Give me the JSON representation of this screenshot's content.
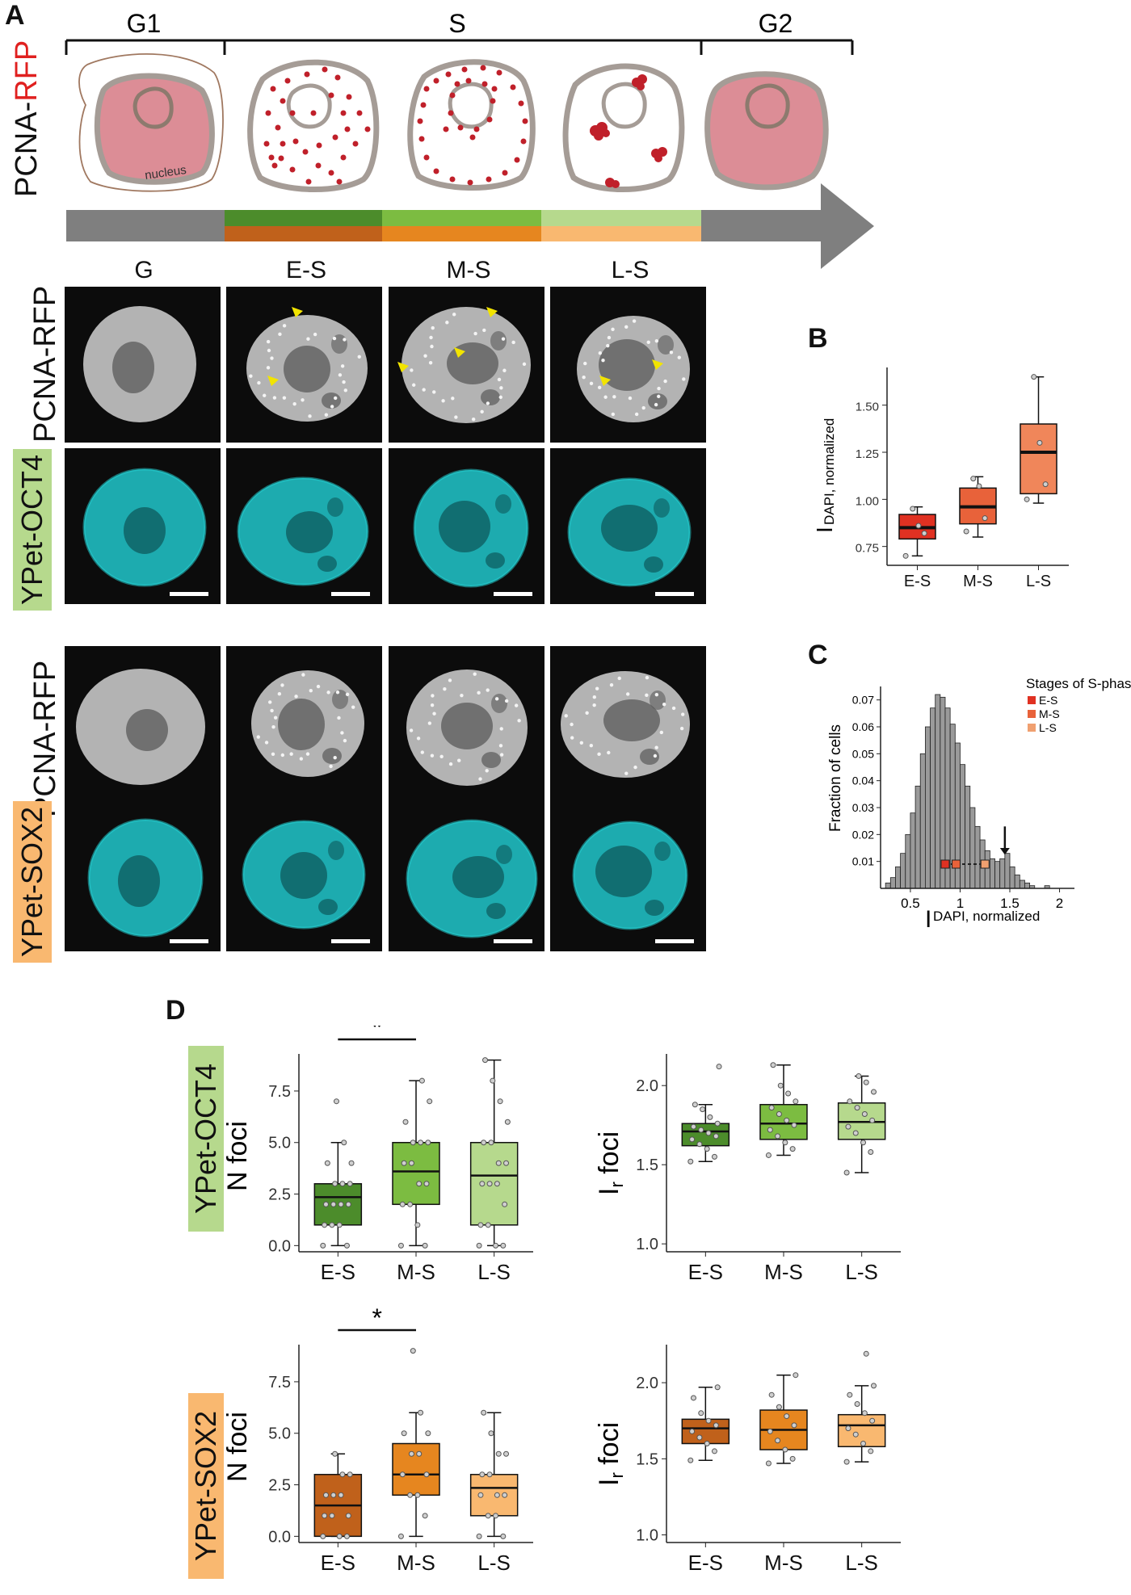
{
  "panelA": {
    "letter": "A",
    "phases": [
      "G1",
      "S",
      "G2"
    ],
    "row_label_reporter": "PCNA-",
    "row_label_color": "RFP",
    "nucleus_label": "nucleus",
    "column_headers": [
      "G",
      "E-S",
      "M-S",
      "L-S"
    ],
    "row1_label": "PCNA-RFP",
    "row2_label": "YPet-OCT4",
    "row3_label": "PCNA-RFP",
    "row4_label": "YPet-SOX2"
  },
  "colors": {
    "green_dark": "#4c8c2b",
    "green_mid": "#7cbc41",
    "green_light": "#b6d98d",
    "orange_dark": "#c0611b",
    "orange_mid": "#e6861f",
    "orange_light": "#f9b870",
    "red": "#e03122",
    "cyan": "#19c4c8",
    "pcna_red": "#c0202a",
    "nucleus_pink": "#dc8d96"
  },
  "panelB": {
    "letter": "B",
    "ylabel_main": "I",
    "ylabel_sub": "DAPI, normalized",
    "chart_data": {
      "type": "box",
      "categories": [
        "E-S",
        "M-S",
        "L-S"
      ],
      "ylim": [
        0.65,
        1.7
      ],
      "yticks": [
        "0.75",
        "1.00",
        "1.25",
        "1.50"
      ],
      "boxes": [
        {
          "name": "E-S",
          "min": 0.7,
          "q1": 0.79,
          "median": 0.85,
          "q3": 0.92,
          "max": 0.96,
          "points": [
            0.7,
            0.82,
            0.86,
            0.95
          ]
        },
        {
          "name": "M-S",
          "min": 0.8,
          "q1": 0.87,
          "median": 0.96,
          "q3": 1.06,
          "max": 1.12,
          "points": [
            0.83,
            0.9,
            1.07,
            1.11
          ]
        },
        {
          "name": "L-S",
          "min": 0.98,
          "q1": 1.03,
          "median": 1.25,
          "q3": 1.4,
          "max": 1.65,
          "points": [
            1.0,
            1.08,
            1.3,
            1.65
          ]
        }
      ]
    }
  },
  "panelC": {
    "letter": "C",
    "ylabel": "Fraction of cells",
    "xlabel_main": "I",
    "xlabel_sub": "DAPI, normalized",
    "legend_title": "Stages of S-phase",
    "legend": [
      "E-S",
      "M-S",
      "L-S"
    ],
    "chart_data": {
      "type": "bar",
      "xlim": [
        0.2,
        2.15
      ],
      "ylim": [
        0,
        0.075
      ],
      "xticks": [
        "0.5",
        "1",
        "1.5",
        "2"
      ],
      "yticks": [
        "0.01",
        "0.02",
        "0.03",
        "0.04",
        "0.05",
        "0.06",
        "0.07"
      ],
      "bin_width": 0.05,
      "bin_starts": [
        0.25,
        0.3,
        0.35,
        0.4,
        0.45,
        0.5,
        0.55,
        0.6,
        0.65,
        0.7,
        0.75,
        0.8,
        0.85,
        0.9,
        0.95,
        1.0,
        1.05,
        1.1,
        1.15,
        1.2,
        1.25,
        1.3,
        1.35,
        1.4,
        1.45,
        1.5,
        1.55,
        1.6,
        1.65,
        1.7,
        1.75,
        1.8,
        1.85,
        1.9,
        1.95
      ],
      "values": [
        0.002,
        0.004,
        0.008,
        0.013,
        0.02,
        0.028,
        0.038,
        0.05,
        0.06,
        0.067,
        0.072,
        0.071,
        0.067,
        0.061,
        0.054,
        0.046,
        0.038,
        0.03,
        0.023,
        0.018,
        0.014,
        0.011,
        0.01,
        0.011,
        0.013,
        0.008,
        0.005,
        0.003,
        0.002,
        0.001,
        0.0,
        0.0,
        0.001,
        0.0,
        0.0
      ],
      "stage_markers": [
        {
          "name": "E-S",
          "x": 0.85,
          "y": 0.009
        },
        {
          "name": "M-S",
          "x": 0.96,
          "y": 0.009
        },
        {
          "name": "L-S",
          "x": 1.25,
          "y": 0.009
        }
      ],
      "arrow_x": 1.45
    }
  },
  "panelD": {
    "letter": "D",
    "significance": "*",
    "left_ylabel": "N foci",
    "right_ylabel_main": "I",
    "right_ylabel_sub": "r",
    "right_ylabel_tail": " foci",
    "oct4_tag": "YPet-OCT4",
    "sox2_tag": "YPet-SOX2",
    "categories": [
      "E-S",
      "M-S",
      "L-S"
    ],
    "nfoci_yticks": [
      "0.0",
      "2.5",
      "5.0",
      "7.5"
    ],
    "ir_yticks": [
      "1.0",
      "1.5",
      "2.0"
    ],
    "chart_data": [
      {
        "type": "box",
        "name": "oct4-nfoci",
        "ylim": [
          -0.3,
          9.3
        ],
        "boxes": [
          {
            "name": "E-S",
            "min": 0,
            "q1": 1,
            "median": 2.35,
            "q3": 3,
            "max": 5,
            "points": [
              0,
              0,
              1,
              1,
              1,
              2,
              2,
              2,
              2,
              3,
              3,
              3,
              4,
              4,
              5,
              7
            ]
          },
          {
            "name": "M-S",
            "min": 0,
            "q1": 2,
            "median": 3.6,
            "q3": 5,
            "max": 8,
            "points": [
              0,
              0,
              1,
              2,
              2,
              3,
              3,
              4,
              4,
              5,
              5,
              5,
              6,
              7,
              8
            ]
          },
          {
            "name": "L-S",
            "min": 0,
            "q1": 1,
            "median": 3.4,
            "q3": 5,
            "max": 9,
            "points": [
              0,
              0,
              0,
              1,
              1,
              2,
              3,
              3,
              3,
              4,
              4,
              5,
              5,
              6,
              7,
              8,
              9
            ]
          }
        ]
      },
      {
        "type": "box",
        "name": "oct4-ir",
        "ylim": [
          0.95,
          2.2
        ],
        "boxes": [
          {
            "name": "E-S",
            "min": 1.52,
            "q1": 1.62,
            "median": 1.71,
            "q3": 1.76,
            "max": 1.88,
            "points": [
              1.52,
              1.55,
              1.6,
              1.63,
              1.66,
              1.68,
              1.7,
              1.72,
              1.74,
              1.76,
              1.8,
              1.85,
              1.88,
              2.12
            ]
          },
          {
            "name": "M-S",
            "min": 1.56,
            "q1": 1.66,
            "median": 1.76,
            "q3": 1.88,
            "max": 2.13,
            "points": [
              1.56,
              1.6,
              1.64,
              1.68,
              1.72,
              1.75,
              1.78,
              1.82,
              1.86,
              1.9,
              1.95,
              2.0,
              2.13
            ]
          },
          {
            "name": "L-S",
            "min": 1.45,
            "q1": 1.66,
            "median": 1.77,
            "q3": 1.89,
            "max": 2.06,
            "points": [
              1.45,
              1.58,
              1.64,
              1.7,
              1.74,
              1.78,
              1.82,
              1.86,
              1.9,
              1.96,
              2.02,
              2.06
            ]
          }
        ]
      },
      {
        "type": "box",
        "name": "sox2-nfoci",
        "ylim": [
          -0.3,
          9.3
        ],
        "boxes": [
          {
            "name": "E-S",
            "min": 0,
            "q1": 0,
            "median": 1.5,
            "q3": 3,
            "max": 4,
            "points": [
              0,
              0,
              0,
              1,
              1,
              1,
              2,
              2,
              2,
              3,
              3,
              4
            ]
          },
          {
            "name": "M-S",
            "min": 0,
            "q1": 2,
            "median": 3,
            "q3": 4.5,
            "max": 6,
            "points": [
              0,
              1,
              2,
              2,
              3,
              3,
              4,
              4,
              5,
              5,
              6,
              9
            ]
          },
          {
            "name": "L-S",
            "min": 0,
            "q1": 1,
            "median": 2.35,
            "q3": 3,
            "max": 6,
            "points": [
              0,
              0,
              1,
              1,
              2,
              2,
              2,
              3,
              3,
              4,
              4,
              5,
              6
            ]
          }
        ]
      },
      {
        "type": "box",
        "name": "sox2-ir",
        "ylim": [
          0.95,
          2.25
        ],
        "boxes": [
          {
            "name": "E-S",
            "min": 1.49,
            "q1": 1.6,
            "median": 1.7,
            "q3": 1.76,
            "max": 1.97,
            "points": [
              1.49,
              1.55,
              1.6,
              1.64,
              1.68,
              1.72,
              1.75,
              1.8,
              1.9,
              1.97
            ]
          },
          {
            "name": "M-S",
            "min": 1.47,
            "q1": 1.56,
            "median": 1.69,
            "q3": 1.82,
            "max": 2.05,
            "points": [
              1.47,
              1.5,
              1.56,
              1.62,
              1.68,
              1.72,
              1.78,
              1.84,
              1.92,
              2.05
            ]
          },
          {
            "name": "L-S",
            "min": 1.48,
            "q1": 1.58,
            "median": 1.72,
            "q3": 1.79,
            "max": 1.98,
            "points": [
              1.48,
              1.55,
              1.6,
              1.66,
              1.7,
              1.75,
              1.8,
              1.86,
              1.92,
              1.98,
              2.19
            ]
          }
        ]
      }
    ]
  }
}
